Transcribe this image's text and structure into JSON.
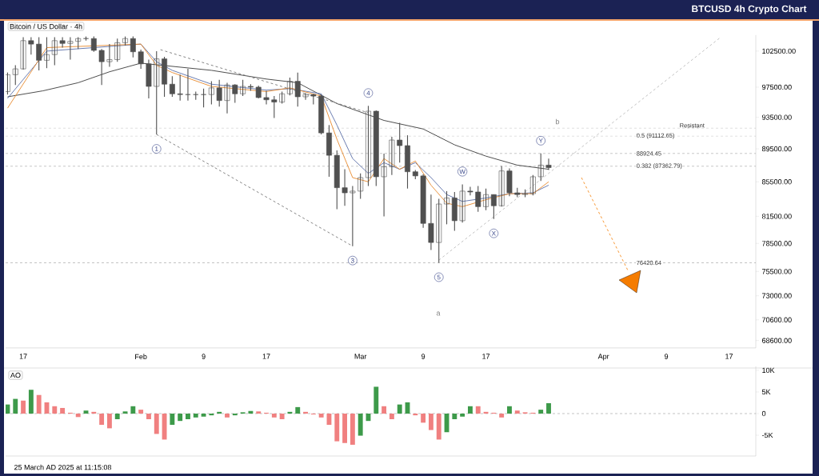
{
  "chart_data": [
    {
      "type": "candlestick",
      "title": "BTCUSD 4h Crypto Chart",
      "subtitle": "Bitcoin / US Dollar · 4h",
      "color": "#505050",
      "log": "y",
      "xlim": [
        "2025-01-14T18:00",
        "2025-04-20T10:00"
      ],
      "ylim": [
        67900,
        104800
      ],
      "xticks": [
        {
          "value": "2025-01-17",
          "label": "17"
        },
        {
          "value": "2025-02-01",
          "label": "Feb"
        },
        {
          "value": "2025-02-09",
          "label": "9"
        },
        {
          "value": "2025-02-17",
          "label": "17"
        },
        {
          "value": "2025-03-01",
          "label": "Mar"
        },
        {
          "value": "2025-03-09",
          "label": "9"
        },
        {
          "value": "2025-03-17",
          "label": "17"
        },
        {
          "value": "2025-04-01",
          "label": "Apr"
        },
        {
          "value": "2025-04-09",
          "label": "9"
        },
        {
          "value": "2025-04-17",
          "label": "17"
        }
      ],
      "yticks": [
        {
          "value": 102500,
          "label": "102500.00"
        },
        {
          "value": 97500,
          "label": "97500.00"
        },
        {
          "value": 93500,
          "label": "93500.00"
        },
        {
          "value": 89500,
          "label": "89500.00"
        },
        {
          "value": 85500,
          "label": "85500.00"
        },
        {
          "value": 81500,
          "label": "81500.00"
        },
        {
          "value": 78500,
          "label": "78500.00"
        },
        {
          "value": 75500,
          "label": "75500.00"
        },
        {
          "value": 73000,
          "label": "73000.00"
        },
        {
          "value": 70600,
          "label": "70600.00"
        },
        {
          "value": 68600,
          "label": "68600.00"
        }
      ],
      "x": [
        "2025-01-15",
        "2025-01-16",
        "2025-01-17",
        "2025-01-18",
        "2025-01-19",
        "2025-01-20",
        "2025-01-21",
        "2025-01-22",
        "2025-01-23",
        "2025-01-24",
        "2025-01-25",
        "2025-01-26",
        "2025-01-27",
        "2025-01-28",
        "2025-01-29",
        "2025-01-30",
        "2025-01-31",
        "2025-02-01",
        "2025-02-02",
        "2025-02-03",
        "2025-02-04",
        "2025-02-05",
        "2025-02-06",
        "2025-02-07",
        "2025-02-08",
        "2025-02-09",
        "2025-02-10",
        "2025-02-11",
        "2025-02-12",
        "2025-02-13",
        "2025-02-14",
        "2025-02-15",
        "2025-02-16",
        "2025-02-17",
        "2025-02-18",
        "2025-02-19",
        "2025-02-20",
        "2025-02-21",
        "2025-02-22",
        "2025-02-23",
        "2025-02-24",
        "2025-02-25",
        "2025-02-26",
        "2025-02-27",
        "2025-02-28",
        "2025-03-01",
        "2025-03-02",
        "2025-03-03",
        "2025-03-04",
        "2025-03-05",
        "2025-03-06",
        "2025-03-07",
        "2025-03-08",
        "2025-03-09",
        "2025-03-10",
        "2025-03-11",
        "2025-03-12",
        "2025-03-13",
        "2025-03-14",
        "2025-03-15",
        "2025-03-16",
        "2025-03-17",
        "2025-03-18",
        "2025-03-19",
        "2025-03-20",
        "2025-03-21",
        "2025-03-22",
        "2025-03-23",
        "2025-03-24",
        "2025-03-25"
      ],
      "ohlc": [
        [
          96900,
          99500,
          96500,
          99200
        ],
        [
          99200,
          100500,
          97800,
          100000
        ],
        [
          100000,
          104500,
          99900,
          104000
        ],
        [
          104000,
          104500,
          102000,
          103500
        ],
        [
          103500,
          104500,
          99800,
          101200
        ],
        [
          101200,
          104500,
          100100,
          102000
        ],
        [
          102000,
          104500,
          100500,
          104000
        ],
        [
          104000,
          104500,
          103000,
          103600
        ],
        [
          103600,
          104500,
          101300,
          103900
        ],
        [
          103900,
          104500,
          102800,
          104300
        ],
        [
          104300,
          104600,
          104000,
          104300
        ],
        [
          104300,
          104600,
          102400,
          102600
        ],
        [
          102600,
          102800,
          97800,
          101000
        ],
        [
          101000,
          103500,
          100300,
          101300
        ],
        [
          101300,
          104300,
          101000,
          103700
        ],
        [
          103700,
          104600,
          103300,
          104300
        ],
        [
          104300,
          104600,
          101600,
          102400
        ],
        [
          102400,
          102700,
          100000,
          100700
        ],
        [
          100700,
          101300,
          96000,
          97600
        ],
        [
          97600,
          102500,
          91300,
          101400
        ],
        [
          101400,
          101700,
          96200,
          97900
        ],
        [
          97900,
          99000,
          96200,
          96600
        ],
        [
          96600,
          99200,
          95700,
          96500
        ],
        [
          96500,
          100000,
          95700,
          96500
        ],
        [
          96500,
          96900,
          95800,
          96500
        ],
        [
          96500,
          97300,
          94800,
          96500
        ],
        [
          96500,
          98300,
          95200,
          97400
        ],
        [
          97400,
          98500,
          94900,
          95700
        ],
        [
          95700,
          98100,
          94000,
          97800
        ],
        [
          97800,
          97900,
          95400,
          96600
        ],
        [
          96600,
          98500,
          96300,
          97600
        ],
        [
          97600,
          97900,
          97000,
          97500
        ],
        [
          97500,
          97700,
          96000,
          96100
        ],
        [
          96100,
          97000,
          95200,
          95800
        ],
        [
          95800,
          96300,
          93400,
          95500
        ],
        [
          95500,
          96900,
          95300,
          96600
        ],
        [
          96600,
          98800,
          96400,
          98300
        ],
        [
          98300,
          99500,
          94900,
          96200
        ],
        [
          96200,
          96700,
          95800,
          96500
        ],
        [
          96500,
          96600,
          95200,
          96300
        ],
        [
          96300,
          96500,
          91300,
          91500
        ],
        [
          91500,
          92500,
          86100,
          88700
        ],
        [
          88700,
          89300,
          82300,
          84800
        ],
        [
          84800,
          87000,
          82700,
          84200
        ],
        [
          84200,
          85000,
          78200,
          84400
        ],
        [
          84400,
          86500,
          83500,
          86000
        ],
        [
          86000,
          95000,
          85000,
          94300
        ],
        [
          94300,
          94400,
          85000,
          86100
        ],
        [
          86100,
          88900,
          81500,
          87300
        ],
        [
          87300,
          91000,
          86300,
          90600
        ],
        [
          90600,
          92800,
          87800,
          89900
        ],
        [
          89900,
          91200,
          84700,
          86700
        ],
        [
          86700,
          86900,
          85800,
          86200
        ],
        [
          86200,
          86400,
          80200,
          80700
        ],
        [
          80700,
          84000,
          77800,
          78600
        ],
        [
          78600,
          83500,
          76420.64,
          82900
        ],
        [
          82900,
          84400,
          80600,
          83600
        ],
        [
          83600,
          84300,
          79900,
          81000
        ],
        [
          81000,
          85200,
          80800,
          84400
        ],
        [
          84400,
          84900,
          83900,
          84300
        ],
        [
          84300,
          85000,
          82000,
          82600
        ],
        [
          82600,
          84700,
          82200,
          84000
        ],
        [
          84000,
          84000,
          81200,
          82700
        ],
        [
          82700,
          87400,
          82600,
          86800
        ],
        [
          86800,
          87100,
          83800,
          84200
        ],
        [
          84200,
          84800,
          83700,
          84000
        ],
        [
          84000,
          84600,
          83700,
          84100
        ],
        [
          84100,
          86300,
          83900,
          86100
        ],
        [
          86100,
          88924.45,
          85600,
          87500
        ],
        [
          87500,
          88300,
          86900,
          87200
        ]
      ],
      "series": [
        {
          "type": "line",
          "color": "#3a3a3a",
          "x": [
            "2025-01-15",
            "2025-01-19T12:00",
            "2025-01-24",
            "2025-01-28",
            "2025-02-01",
            "2025-02-10",
            "2025-02-17",
            "2025-02-21",
            "2025-02-26",
            "2025-03-04",
            "2025-03-09",
            "2025-03-13",
            "2025-03-17",
            "2025-03-21",
            "2025-03-25"
          ],
          "values": [
            96200,
            97000,
            98100,
            99600,
            100800,
            99800,
            98600,
            98100,
            95300,
            93100,
            92000,
            90000,
            88600,
            87500,
            87000
          ]
        },
        {
          "type": "line",
          "color": "#5b6fa8",
          "x": [
            "2025-01-15",
            "2025-01-20",
            "2025-02-01",
            "2025-02-03",
            "2025-02-05",
            "2025-02-10",
            "2025-02-17",
            "2025-02-20",
            "2025-02-24",
            "2025-02-26",
            "2025-02-28",
            "2025-03-02",
            "2025-03-04",
            "2025-03-06",
            "2025-03-08",
            "2025-03-10",
            "2025-03-12",
            "2025-03-14",
            "2025-03-17",
            "2025-03-20",
            "2025-03-23",
            "2025-03-25"
          ],
          "values": [
            96000,
            102500,
            103500,
            101000,
            99800,
            97900,
            97100,
            97300,
            96600,
            92500,
            88300,
            86500,
            87800,
            87000,
            87800,
            86000,
            84000,
            83200,
            83600,
            84100,
            84200,
            85100
          ]
        },
        {
          "type": "line",
          "color": "#e8892c",
          "x": [
            "2025-01-15",
            "2025-01-20",
            "2025-02-01",
            "2025-02-03",
            "2025-02-05",
            "2025-02-10",
            "2025-02-17",
            "2025-02-20",
            "2025-02-24",
            "2025-02-26",
            "2025-02-28",
            "2025-03-02",
            "2025-03-04",
            "2025-03-06",
            "2025-03-08",
            "2025-03-10",
            "2025-03-12",
            "2025-03-14",
            "2025-03-17",
            "2025-03-20",
            "2025-03-23",
            "2025-03-25"
          ],
          "values": [
            94700,
            103000,
            103500,
            100500,
            99500,
            97600,
            96900,
            97400,
            96300,
            90700,
            86000,
            85500,
            88300,
            87000,
            88000,
            85100,
            83000,
            82600,
            83400,
            84100,
            84100,
            85500
          ]
        },
        {
          "type": "line",
          "line_style": "dashed",
          "color": "#777777",
          "x": [
            "2025-02-03",
            "2025-02-28"
          ],
          "values": [
            91300,
            78200
          ]
        },
        {
          "type": "line",
          "line_style": "dashed",
          "color": "#777777",
          "x": [
            "2025-02-03T12:00",
            "2025-03-02"
          ],
          "values": [
            102700,
            94100
          ]
        },
        {
          "type": "line",
          "line_style": "dashed",
          "color": "#bbbbbb",
          "x": [
            "2025-03-11",
            "2025-04-15T20:00"
          ],
          "values": [
            76700,
            104400
          ]
        }
      ],
      "ref_lines": [
        {
          "axis": "y",
          "value": 92100,
          "label": "Resistant",
          "line_style": "dashed"
        },
        {
          "axis": "y",
          "value": 91112.65,
          "label": "0.5 (91112.65)",
          "line_style": "dashed"
        },
        {
          "axis": "y",
          "value": 88924.45,
          "label": "88924.45",
          "line_style": "dashed"
        },
        {
          "axis": "y",
          "value": 87362.79,
          "label": "0.382 (87362.79)",
          "line_style": "dashed"
        },
        {
          "axis": "y",
          "value": 76420.64,
          "label": "76420.64",
          "line_style": "dashed"
        }
      ],
      "annotations": [
        {
          "text": "1",
          "x": "2025-02-03",
          "y": 91300
        },
        {
          "text": "3",
          "x": "2025-02-28",
          "y": 78200
        },
        {
          "text": "4",
          "x": "2025-03-02",
          "y": 95000
        },
        {
          "text": "5",
          "x": "2025-03-11",
          "y": 76420.64
        },
        "a",
        {
          "text": "W",
          "x": "2025-03-14",
          "y": 85200
        },
        {
          "text": "X",
          "x": "2025-03-18",
          "y": 81200
        },
        {
          "text": "Y",
          "x": "2025-03-24",
          "y": 88924.45
        },
        "b"
      ]
    },
    {
      "type": "bar",
      "title": "AO",
      "tick_labels": "y",
      "xlim": [
        "2025-01-14T18:00",
        "2025-04-20T10:00"
      ],
      "ylim": [
        -9800,
        10900
      ],
      "yticks": [
        {
          "value": 10000,
          "label": "10K"
        },
        {
          "value": 5000,
          "label": "5K"
        },
        0,
        {
          "value": -5000,
          "label": "-5K"
        }
      ],
      "x": [
        "2025-01-15",
        "2025-01-16",
        "2025-01-17",
        "2025-01-18",
        "2025-01-19",
        "2025-01-20",
        "2025-01-21",
        "2025-01-22",
        "2025-01-23",
        "2025-01-24",
        "2025-01-25",
        "2025-01-26",
        "2025-01-27",
        "2025-01-28",
        "2025-01-29",
        "2025-01-30",
        "2025-01-31",
        "2025-02-01",
        "2025-02-02",
        "2025-02-03",
        "2025-02-04",
        "2025-02-05",
        "2025-02-06",
        "2025-02-07",
        "2025-02-08",
        "2025-02-09",
        "2025-02-10",
        "2025-02-11",
        "2025-02-12",
        "2025-02-13",
        "2025-02-14",
        "2025-02-15",
        "2025-02-16",
        "2025-02-17",
        "2025-02-18",
        "2025-02-19",
        "2025-02-20",
        "2025-02-21",
        "2025-02-22",
        "2025-02-23",
        "2025-02-24",
        "2025-02-25",
        "2025-02-26",
        "2025-02-27",
        "2025-02-28",
        "2025-03-01",
        "2025-03-02",
        "2025-03-03",
        "2025-03-04",
        "2025-03-05",
        "2025-03-06",
        "2025-03-07",
        "2025-03-08",
        "2025-03-09",
        "2025-03-10",
        "2025-03-11",
        "2025-03-12",
        "2025-03-13",
        "2025-03-14",
        "2025-03-15",
        "2025-03-16",
        "2025-03-17",
        "2025-03-18",
        "2025-03-19",
        "2025-03-20",
        "2025-03-21",
        "2025-03-22",
        "2025-03-23",
        "2025-03-24",
        "2025-03-25"
      ],
      "values": [
        2100,
        3400,
        3000,
        5500,
        4300,
        2600,
        1700,
        1300,
        200,
        -800,
        700,
        400,
        -2600,
        -3400,
        -1300,
        500,
        1700,
        900,
        -1300,
        -4700,
        -6000,
        -2600,
        -1700,
        -1300,
        -900,
        -700,
        -400,
        400,
        -900,
        -400,
        300,
        600,
        500,
        200,
        -900,
        -1300,
        400,
        1500,
        400,
        -200,
        -900,
        -2600,
        -6400,
        -6800,
        -7200,
        -5100,
        -1700,
        6200,
        1700,
        -1300,
        2100,
        2600,
        -400,
        -2100,
        -3800,
        -6000,
        -4300,
        -1300,
        -700,
        1700,
        1700,
        400,
        200,
        -900,
        1700,
        700,
        300,
        200,
        900,
        2400
      ],
      "colors": [
        "#3d9a4a",
        "#3d9a4a",
        "#f08080",
        "#3d9a4a",
        "#f08080",
        "#f08080",
        "#f08080",
        "#f08080",
        "#f08080",
        "#f08080",
        "#3d9a4a",
        "#f08080",
        "#f08080",
        "#f08080",
        "#3d9a4a",
        "#3d9a4a",
        "#3d9a4a",
        "#f08080",
        "#f08080",
        "#f08080",
        "#f08080",
        "#3d9a4a",
        "#3d9a4a",
        "#3d9a4a",
        "#3d9a4a",
        "#3d9a4a",
        "#3d9a4a",
        "#3d9a4a",
        "#f08080",
        "#3d9a4a",
        "#3d9a4a",
        "#3d9a4a",
        "#f08080",
        "#f08080",
        "#f08080",
        "#f08080",
        "#3d9a4a",
        "#3d9a4a",
        "#f08080",
        "#f08080",
        "#f08080",
        "#f08080",
        "#f08080",
        "#f08080",
        "#f08080",
        "#3d9a4a",
        "#3d9a4a",
        "#3d9a4a",
        "#f08080",
        "#f08080",
        "#3d9a4a",
        "#3d9a4a",
        "#f08080",
        "#f08080",
        "#f08080",
        "#f08080",
        "#3d9a4a",
        "#3d9a4a",
        "#3d9a4a",
        "#3d9a4a",
        "#f08080",
        "#f08080",
        "#f08080",
        "#f08080",
        "#3d9a4a",
        "#f08080",
        "#f08080",
        "#f08080",
        "#3d9a4a",
        "#3d9a4a"
      ],
      "ref_lines": [
        {
          "axis": "y",
          "value": 0,
          "line_style": "dashed"
        }
      ],
      "annotations": [
        "25 March AD 2025 at 11:15:08"
      ]
    }
  ]
}
